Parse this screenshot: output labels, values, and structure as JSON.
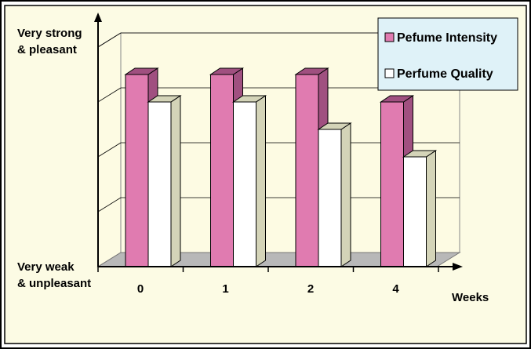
{
  "chart_data": {
    "type": "bar",
    "categories": [
      "0",
      "1",
      "2",
      "4"
    ],
    "xlabel": "Weeks",
    "y_top_label": [
      "Very strong",
      "& pleasant"
    ],
    "y_bottom_label": [
      "Very weak",
      "& unpleasant"
    ],
    "ylim": [
      0,
      4
    ],
    "grid": true,
    "legend_position": "top-right",
    "series": [
      {
        "name": "Pefume Intensity",
        "values": [
          3.5,
          3.5,
          3.5,
          3.0
        ],
        "color": "#e07bb0",
        "shade": "#a05080"
      },
      {
        "name": "Perfume Quality",
        "values": [
          3.0,
          3.0,
          2.5,
          2.0
        ],
        "color": "#ffffff",
        "shade": "#d4d4b8"
      }
    ],
    "colors": {
      "plot_background": "#fdfbe3",
      "legend_background": "#dff2f8",
      "frame_background": "#fcfbe4",
      "floor": "#b8b8b8"
    }
  }
}
